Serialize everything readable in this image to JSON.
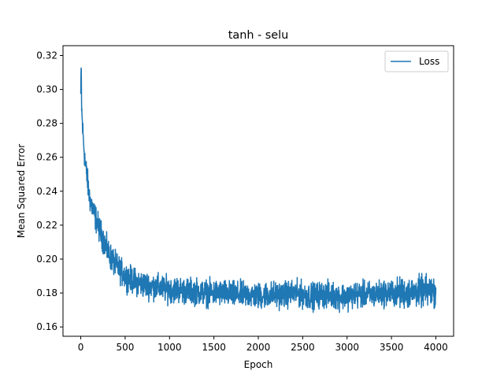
{
  "chart_data": {
    "type": "line",
    "title": "tanh - selu",
    "xlabel": "Epoch",
    "ylabel": "Mean Squared Error",
    "xlim": [
      -200,
      4200
    ],
    "ylim": [
      0.1545,
      0.3258
    ],
    "xticks": [
      0,
      500,
      1000,
      1500,
      2000,
      2500,
      3000,
      3500,
      4000
    ],
    "xtick_labels": [
      "0",
      "500",
      "1000",
      "1500",
      "2000",
      "2500",
      "3000",
      "3500",
      "4000"
    ],
    "yticks": [
      0.16,
      0.18,
      0.2,
      0.22,
      0.24,
      0.26,
      0.28,
      0.3,
      0.32
    ],
    "ytick_labels": [
      "0.16",
      "0.18",
      "0.20",
      "0.22",
      "0.24",
      "0.26",
      "0.28",
      "0.30",
      "0.32"
    ],
    "grid": false,
    "legend": {
      "position": "upper-right"
    },
    "series": [
      {
        "name": "Loss",
        "color": "#1f77b4",
        "x": [
          0,
          5,
          10,
          20,
          30,
          50,
          75,
          100,
          150,
          200,
          250,
          300,
          350,
          400,
          450,
          500,
          600,
          700,
          800,
          900,
          1000,
          1100,
          1200,
          1300,
          1400,
          1500,
          1600,
          1700,
          1800,
          1900,
          2000,
          2100,
          2200,
          2300,
          2400,
          2500,
          2600,
          2700,
          2800,
          2900,
          3000,
          3100,
          3200,
          3300,
          3400,
          3500,
          3600,
          3700,
          3800,
          3900,
          4000
        ],
        "y": [
          0.297,
          0.315,
          0.289,
          0.278,
          0.27,
          0.257,
          0.246,
          0.236,
          0.227,
          0.219,
          0.212,
          0.205,
          0.2,
          0.196,
          0.193,
          0.19,
          0.187,
          0.185,
          0.184,
          0.183,
          0.182,
          0.182,
          0.181,
          0.181,
          0.18,
          0.18,
          0.18,
          0.179,
          0.179,
          0.179,
          0.178,
          0.179,
          0.179,
          0.179,
          0.18,
          0.179,
          0.178,
          0.179,
          0.179,
          0.178,
          0.178,
          0.179,
          0.179,
          0.179,
          0.18,
          0.18,
          0.18,
          0.18,
          0.181,
          0.181,
          0.181
        ],
        "band": [
          0.003,
          0.004,
          0.005,
          0.006,
          0.006,
          0.006,
          0.006,
          0.006,
          0.006,
          0.006,
          0.006,
          0.006,
          0.006,
          0.006,
          0.006,
          0.006,
          0.006,
          0.006,
          0.006,
          0.006,
          0.006,
          0.006,
          0.006,
          0.006,
          0.006,
          0.006,
          0.006,
          0.006,
          0.006,
          0.006,
          0.006,
          0.006,
          0.006,
          0.006,
          0.006,
          0.006,
          0.006,
          0.006,
          0.006,
          0.006,
          0.006,
          0.006,
          0.006,
          0.006,
          0.006,
          0.006,
          0.007,
          0.007,
          0.007,
          0.007,
          0.007
        ]
      }
    ]
  }
}
